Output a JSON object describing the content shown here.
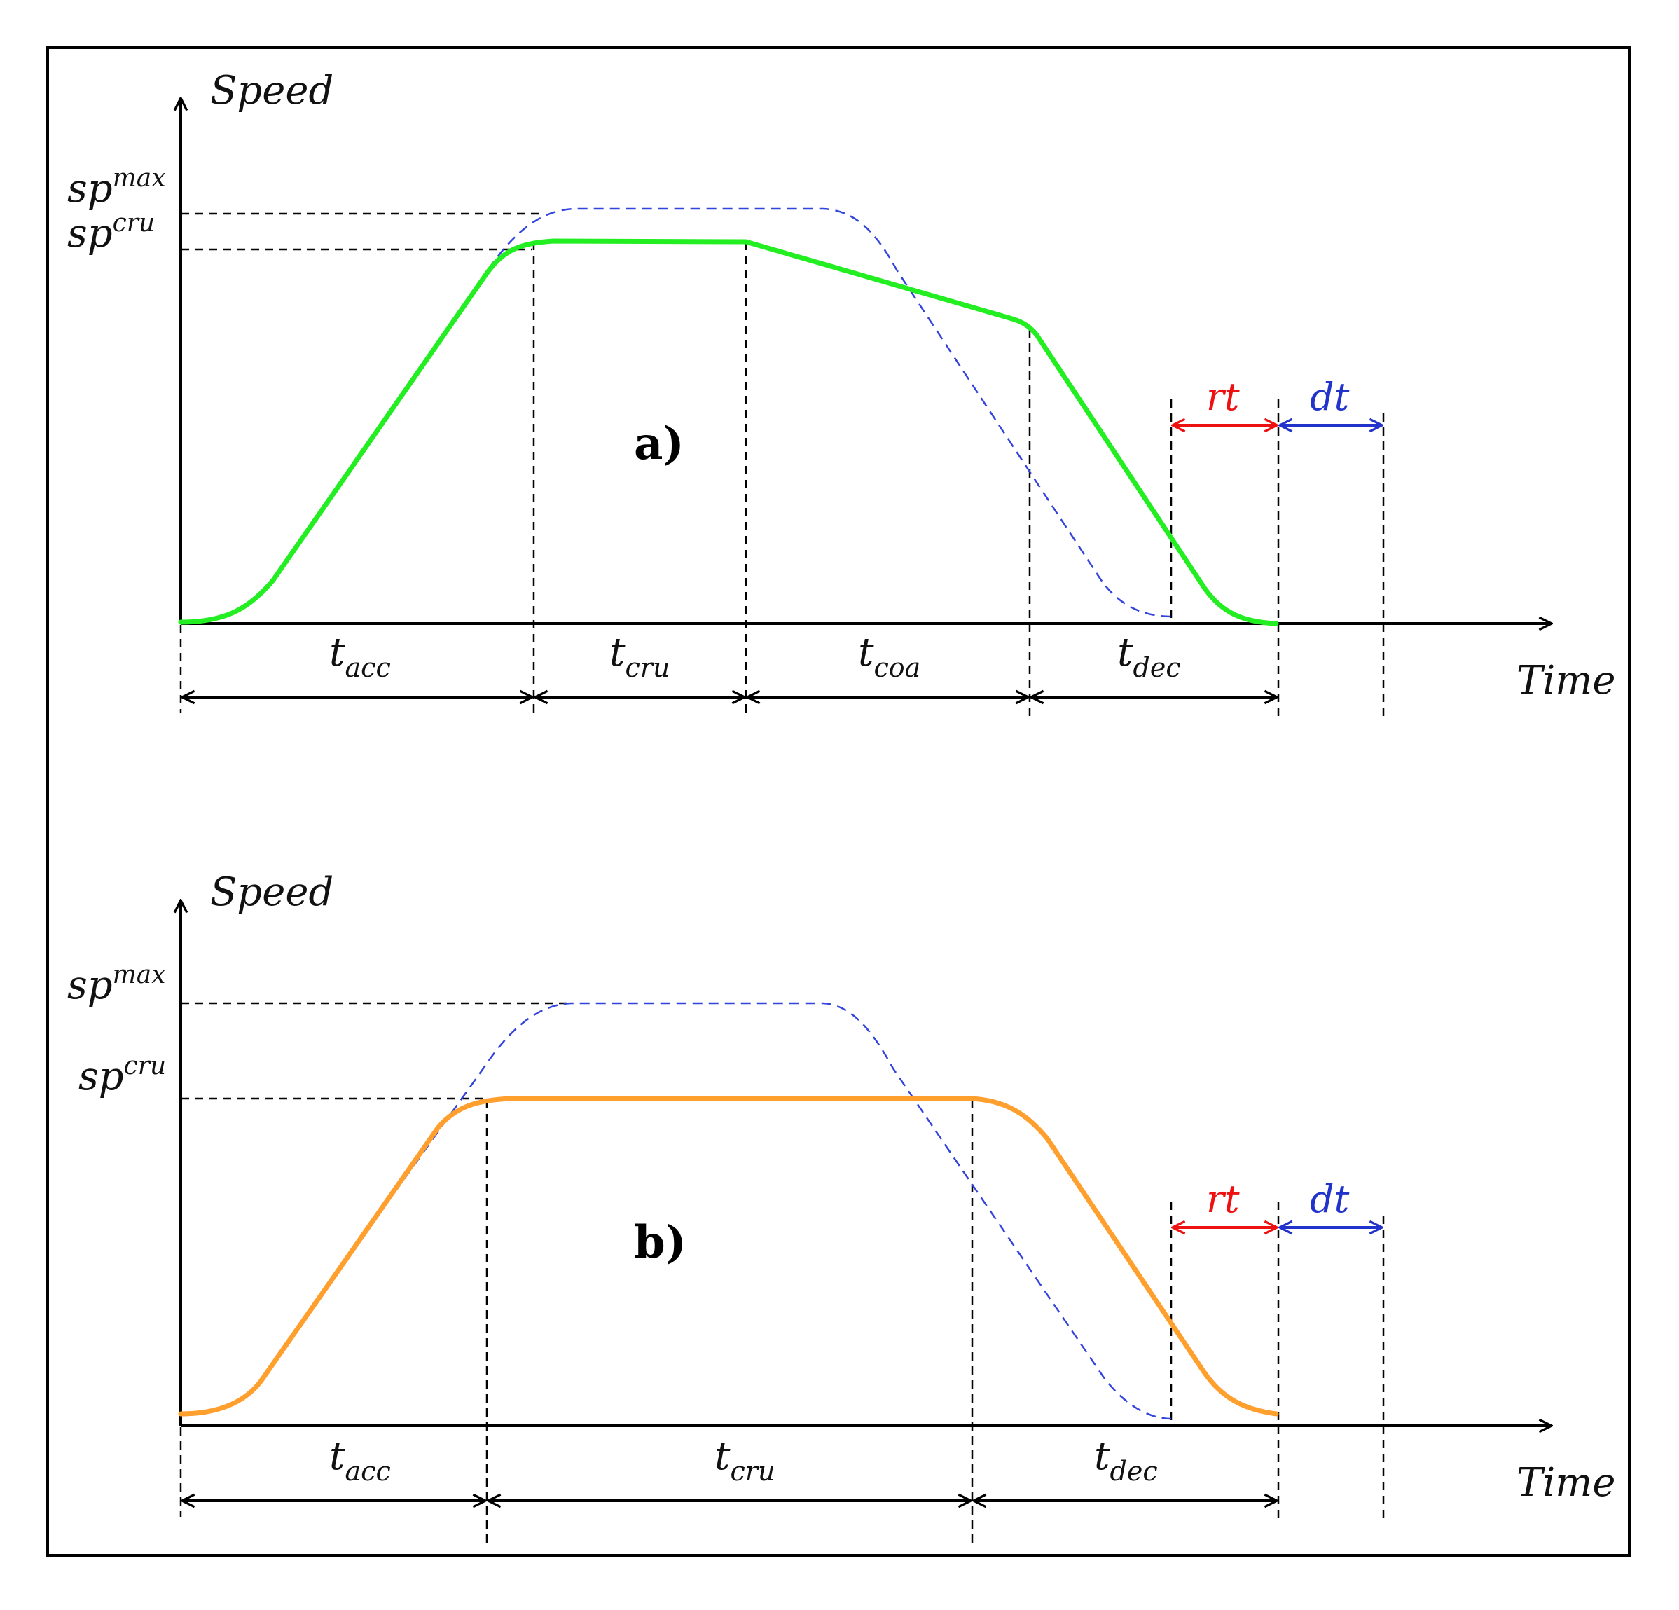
{
  "colors": {
    "axis": "#000000",
    "panel_a_curve": "#22ee22",
    "panel_b_curve": "#ff9f2e",
    "reference_curve": "#3344dd",
    "rt": "#ee1111",
    "dt": "#2233cc"
  },
  "panels": [
    {
      "tag": "a)",
      "y_axis_label": "Speed",
      "x_axis_label": "Time",
      "levels": {
        "max_sym": "sp",
        "max_sup": "max",
        "cru_sym": "sp",
        "cru_sup": "cru"
      },
      "phases": [
        {
          "sym": "t",
          "sub": "acc"
        },
        {
          "sym": "t",
          "sub": "cru"
        },
        {
          "sym": "t",
          "sub": "coa"
        },
        {
          "sym": "t",
          "sub": "dec"
        }
      ],
      "rt_label": "rt",
      "dt_label": "dt"
    },
    {
      "tag": "b)",
      "y_axis_label": "Speed",
      "x_axis_label": "Time",
      "levels": {
        "max_sym": "sp",
        "max_sup": "max",
        "cru_sym": "sp",
        "cru_sup": "cru"
      },
      "phases": [
        {
          "sym": "t",
          "sub": "acc"
        },
        {
          "sym": "t",
          "sub": "cru"
        },
        {
          "sym": "t",
          "sub": "dec"
        }
      ],
      "rt_label": "rt",
      "dt_label": "dt"
    }
  ]
}
